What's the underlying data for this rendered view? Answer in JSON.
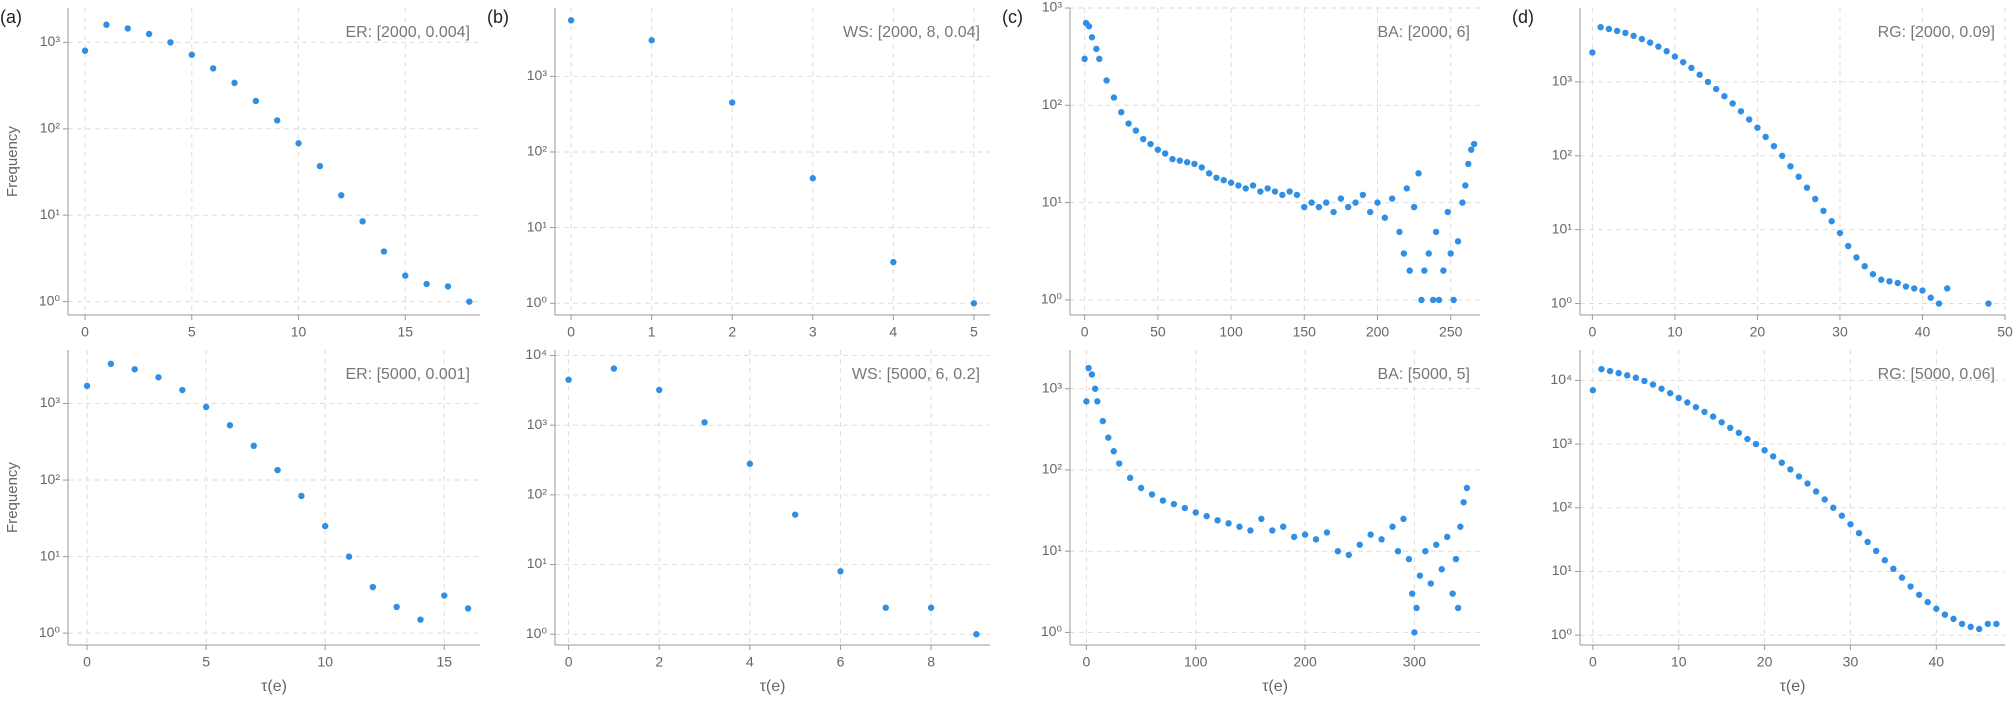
{
  "chart_data": [
    {
      "type": "scatter",
      "panel_label": "(a)",
      "annotation": "ER: [2000, 0.004]",
      "y_label": "Frequency",
      "color": "#2f8fe6",
      "log_y": true,
      "grid": true,
      "x": [
        0,
        1,
        2,
        3,
        4,
        5,
        6,
        7,
        8,
        9,
        10,
        11,
        12,
        13,
        14,
        15,
        16,
        17,
        18
      ],
      "values": [
        800,
        1600,
        1450,
        1250,
        1000,
        720,
        500,
        340,
        210,
        125,
        68,
        37,
        17,
        8.5,
        3.8,
        2.0,
        1.6,
        1.5,
        1.0
      ],
      "xlim": [
        -0.8,
        18.5
      ],
      "xticks": [
        0,
        5,
        10,
        15
      ],
      "ylim": [
        0.7,
        2500
      ],
      "yticks": [
        {
          "value": 1,
          "label": "10⁰"
        },
        {
          "value": 10,
          "label": "10¹"
        },
        {
          "value": 100,
          "label": "10²"
        },
        {
          "value": 1000,
          "label": "10³"
        }
      ]
    },
    {
      "type": "scatter",
      "panel_label": "(b)",
      "annotation": "WS: [2000, 8, 0.04]",
      "color": "#2f8fe6",
      "log_y": true,
      "grid": true,
      "x": [
        0,
        1,
        2,
        3,
        4,
        5
      ],
      "values": [
        5500,
        3000,
        450,
        45,
        3.5,
        1.0
      ],
      "xlim": [
        -0.2,
        5.2
      ],
      "xticks": [
        0,
        1,
        2,
        3,
        4,
        5
      ],
      "ylim": [
        0.7,
        8000
      ],
      "yticks": [
        {
          "value": 1,
          "label": "10⁰"
        },
        {
          "value": 10,
          "label": "10¹"
        },
        {
          "value": 100,
          "label": "10²"
        },
        {
          "value": 1000,
          "label": "10³"
        }
      ]
    },
    {
      "type": "scatter",
      "panel_label": "(c)",
      "annotation": "BA: [2000, 6]",
      "color": "#2f8fe6",
      "log_y": true,
      "grid": true,
      "x": [
        0,
        1,
        3,
        5,
        8,
        10,
        15,
        20,
        25,
        30,
        35,
        40,
        45,
        50,
        55,
        60,
        65,
        70,
        75,
        80,
        85,
        90,
        95,
        100,
        105,
        110,
        115,
        120,
        125,
        130,
        135,
        140,
        145,
        150,
        155,
        160,
        165,
        170,
        175,
        180,
        185,
        190,
        195,
        200,
        205,
        210,
        215,
        218,
        220,
        222,
        225,
        228,
        230,
        232,
        235,
        238,
        240,
        242,
        245,
        248,
        250,
        252,
        255,
        258,
        260,
        262,
        264,
        266
      ],
      "values": [
        300,
        700,
        650,
        500,
        380,
        300,
        180,
        120,
        85,
        65,
        55,
        45,
        40,
        35,
        32,
        28,
        27,
        26,
        25,
        23,
        20,
        18,
        17,
        16,
        15,
        14,
        15,
        13,
        14,
        13,
        12,
        13,
        12,
        9,
        10,
        9,
        10,
        8,
        11,
        9,
        10,
        12,
        8,
        10,
        7,
        11,
        5,
        3,
        14,
        2,
        9,
        20,
        1,
        2,
        3,
        1,
        5,
        1,
        2,
        8,
        3,
        1,
        4,
        10,
        15,
        25,
        35,
        40
      ],
      "xlim": [
        -10,
        270
      ],
      "xticks": [
        0,
        50,
        100,
        150,
        200,
        250
      ],
      "ylim": [
        0.7,
        1000
      ],
      "yticks": [
        {
          "value": 1,
          "label": "10⁰"
        },
        {
          "value": 10,
          "label": "10¹"
        },
        {
          "value": 100,
          "label": "10²"
        },
        {
          "value": 1000,
          "label": "10³"
        }
      ]
    },
    {
      "type": "scatter",
      "panel_label": "(d)",
      "annotation": "RG: [2000, 0.09]",
      "color": "#2f8fe6",
      "log_y": true,
      "grid": true,
      "x": [
        0,
        1,
        2,
        3,
        4,
        5,
        6,
        7,
        8,
        9,
        10,
        11,
        12,
        13,
        14,
        15,
        16,
        17,
        18,
        19,
        20,
        21,
        22,
        23,
        24,
        25,
        26,
        27,
        28,
        29,
        30,
        31,
        32,
        33,
        34,
        35,
        36,
        37,
        38,
        39,
        40,
        41,
        42,
        43,
        48
      ],
      "values": [
        2500,
        5500,
        5200,
        4900,
        4600,
        4200,
        3800,
        3400,
        3000,
        2600,
        2200,
        1850,
        1550,
        1250,
        1000,
        800,
        640,
        510,
        400,
        310,
        240,
        180,
        135,
        100,
        72,
        52,
        37,
        26,
        18,
        13,
        9,
        6,
        4.2,
        3.2,
        2.5,
        2.1,
        2.0,
        1.9,
        1.7,
        1.6,
        1.5,
        1.2,
        1.0,
        1.6,
        1.0
      ],
      "xlim": [
        -1.5,
        50
      ],
      "xticks": [
        0,
        10,
        20,
        30,
        40,
        50
      ],
      "ylim": [
        0.7,
        10000
      ],
      "yticks": [
        {
          "value": 1,
          "label": "10⁰"
        },
        {
          "value": 10,
          "label": "10¹"
        },
        {
          "value": 100,
          "label": "10²"
        },
        {
          "value": 1000,
          "label": "10³"
        }
      ]
    },
    {
      "type": "scatter",
      "annotation": "ER: [5000, 0.001]",
      "y_label": "Frequency",
      "x_label": "τ(e)",
      "color": "#2f8fe6",
      "log_y": true,
      "grid": true,
      "x": [
        0,
        1,
        2,
        3,
        4,
        5,
        6,
        7,
        8,
        9,
        10,
        11,
        12,
        13,
        14,
        15,
        16
      ],
      "values": [
        1700,
        3300,
        2800,
        2200,
        1500,
        900,
        520,
        280,
        135,
        62,
        25,
        10,
        4,
        2.2,
        1.5,
        3.1,
        2.1
      ],
      "xlim": [
        -0.8,
        16.5
      ],
      "xticks": [
        0,
        5,
        10,
        15
      ],
      "ylim": [
        0.7,
        5000
      ],
      "yticks": [
        {
          "value": 1,
          "label": "10⁰"
        },
        {
          "value": 10,
          "label": "10¹"
        },
        {
          "value": 100,
          "label": "10²"
        },
        {
          "value": 1000,
          "label": "10³"
        }
      ]
    },
    {
      "type": "scatter",
      "annotation": "WS: [5000, 6, 0.2]",
      "x_label": "τ(e)",
      "color": "#2f8fe6",
      "log_y": true,
      "grid": true,
      "x": [
        0,
        1,
        2,
        3,
        4,
        5,
        6,
        7,
        8,
        9
      ],
      "values": [
        4500,
        6500,
        3200,
        1100,
        280,
        52,
        8,
        2.4,
        2.4,
        1.0
      ],
      "xlim": [
        -0.3,
        9.3
      ],
      "xticks": [
        0,
        2,
        4,
        6,
        8
      ],
      "ylim": [
        0.7,
        12000
      ],
      "yticks": [
        {
          "value": 1,
          "label": "10⁰"
        },
        {
          "value": 10,
          "label": "10¹"
        },
        {
          "value": 100,
          "label": "10²"
        },
        {
          "value": 1000,
          "label": "10³"
        },
        {
          "value": 10000,
          "label": "10⁴"
        }
      ]
    },
    {
      "type": "scatter",
      "annotation": "BA: [5000, 5]",
      "x_label": "τ(e)",
      "color": "#2f8fe6",
      "log_y": true,
      "grid": true,
      "x": [
        0,
        2,
        5,
        8,
        10,
        15,
        20,
        25,
        30,
        40,
        50,
        60,
        70,
        80,
        90,
        100,
        110,
        120,
        130,
        140,
        150,
        160,
        170,
        180,
        190,
        200,
        210,
        220,
        230,
        240,
        250,
        260,
        270,
        280,
        285,
        290,
        295,
        298,
        300,
        302,
        305,
        310,
        315,
        320,
        325,
        330,
        335,
        338,
        340,
        342,
        345,
        348
      ],
      "values": [
        700,
        1800,
        1500,
        1000,
        700,
        400,
        250,
        170,
        120,
        80,
        60,
        50,
        42,
        38,
        34,
        30,
        27,
        24,
        22,
        20,
        18,
        25,
        18,
        20,
        15,
        16,
        14,
        17,
        10,
        9,
        12,
        16,
        14,
        20,
        10,
        25,
        8,
        3,
        1,
        2,
        5,
        10,
        4,
        12,
        6,
        15,
        3,
        8,
        2,
        20,
        40,
        60
      ],
      "xlim": [
        -15,
        360
      ],
      "xticks": [
        0,
        100,
        200,
        300
      ],
      "ylim": [
        0.7,
        3000
      ],
      "yticks": [
        {
          "value": 1,
          "label": "10⁰"
        },
        {
          "value": 10,
          "label": "10¹"
        },
        {
          "value": 100,
          "label": "10²"
        },
        {
          "value": 1000,
          "label": "10³"
        }
      ]
    },
    {
      "type": "scatter",
      "annotation": "RG: [5000, 0.06]",
      "x_label": "τ(e)",
      "color": "#2f8fe6",
      "log_y": true,
      "grid": true,
      "x": [
        0,
        1,
        2,
        3,
        4,
        5,
        6,
        7,
        8,
        9,
        10,
        11,
        12,
        13,
        14,
        15,
        16,
        17,
        18,
        19,
        20,
        21,
        22,
        23,
        24,
        25,
        26,
        27,
        28,
        29,
        30,
        31,
        32,
        33,
        34,
        35,
        36,
        37,
        38,
        39,
        40,
        41,
        42,
        43,
        44,
        45,
        46,
        47
      ],
      "values": [
        7000,
        15000,
        14000,
        13000,
        12000,
        11000,
        9800,
        8600,
        7400,
        6300,
        5300,
        4500,
        3800,
        3200,
        2700,
        2200,
        1800,
        1500,
        1200,
        1000,
        800,
        640,
        510,
        400,
        310,
        240,
        180,
        135,
        100,
        75,
        55,
        40,
        29,
        21,
        15,
        11,
        8,
        5.8,
        4.3,
        3.3,
        2.6,
        2.1,
        1.8,
        1.5,
        1.35,
        1.25,
        1.5,
        1.5
      ],
      "xlim": [
        -1.5,
        48
      ],
      "xticks": [
        0,
        10,
        20,
        30,
        40
      ],
      "ylim": [
        0.7,
        30000
      ],
      "yticks": [
        {
          "value": 1,
          "label": "10⁰"
        },
        {
          "value": 10,
          "label": "10¹"
        },
        {
          "value": 100,
          "label": "10²"
        },
        {
          "value": 1000,
          "label": "10³"
        },
        {
          "value": 10000,
          "label": "10⁴"
        }
      ]
    }
  ]
}
